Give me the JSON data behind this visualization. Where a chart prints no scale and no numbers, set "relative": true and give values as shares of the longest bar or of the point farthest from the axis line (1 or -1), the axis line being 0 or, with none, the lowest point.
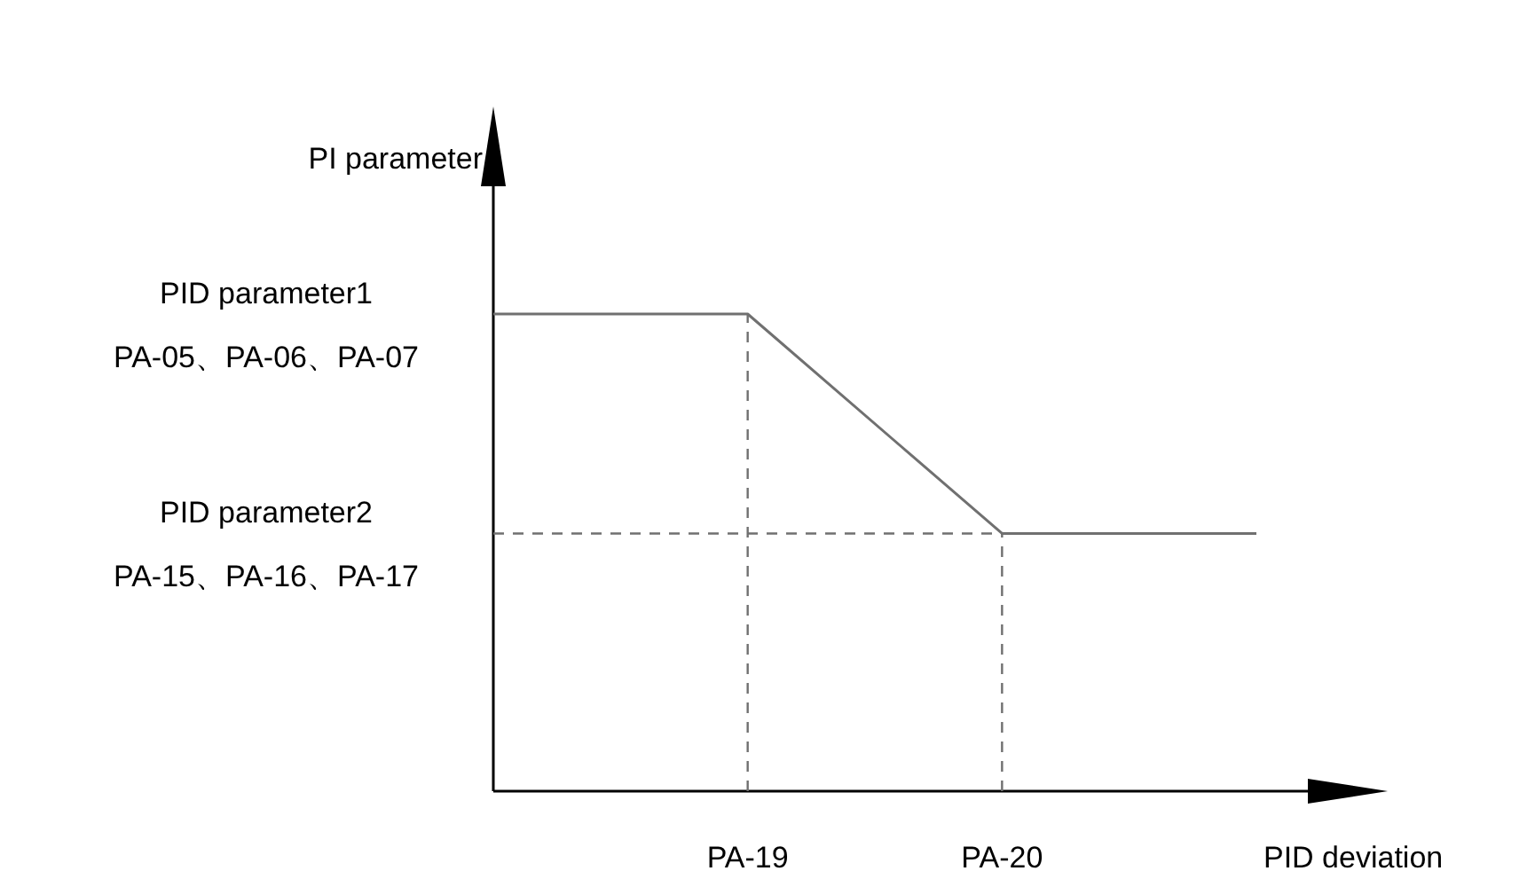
{
  "chart_data": {
    "type": "line",
    "relative": true,
    "xlabel": "PID deviation",
    "ylabel": "PI parameter",
    "categories": [
      null,
      "PA-19",
      "PA-20",
      null
    ],
    "series": [
      {
        "color": "#707070",
        "values": [
          1,
          1,
          0.54,
          0.54
        ]
      }
    ],
    "ref_lines": [
      {
        "axis": "x",
        "value": "PA-19",
        "line_style": "dashed",
        "color": "#707070"
      },
      {
        "axis": "x",
        "value": "PA-20",
        "line_style": "dashed",
        "color": "#707070"
      },
      {
        "axis": "y",
        "value": 0.54,
        "line_style": "dashed",
        "color": "#707070",
        "label": "PID parameter2\nPA-15、PA-16、PA-17"
      }
    ],
    "annotations": [
      "PID parameter1\nPA-05、PA-06、PA-07"
    ],
    "grid": false,
    "marker": "none",
    "line_style": "solid"
  }
}
